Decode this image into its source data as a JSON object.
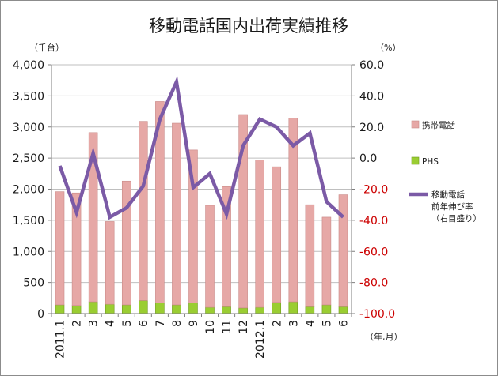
{
  "chart_data": {
    "type": "bar",
    "title": "移動電話国内出荷実績推移",
    "left_unit": "（千台）",
    "right_unit": "（%）",
    "x_unit": "（年,月）",
    "categories": [
      "2011.1",
      "2",
      "3",
      "4",
      "5",
      "6",
      "7",
      "8",
      "9",
      "10",
      "11",
      "12",
      "2012.1",
      "2",
      "3",
      "4",
      "5",
      "6"
    ],
    "left_axis": {
      "ylim": [
        0,
        4000
      ],
      "ticks": [
        0,
        500,
        1000,
        1500,
        2000,
        2500,
        3000,
        3500,
        4000
      ],
      "tick_labels": [
        "0",
        "500",
        "1,000",
        "1,500",
        "2,000",
        "2,500",
        "3,000",
        "3,500",
        "4,000"
      ]
    },
    "right_axis": {
      "ylim": [
        -100,
        60
      ],
      "ticks": [
        -100,
        -80,
        -60,
        -40,
        -20,
        0,
        20,
        40,
        60
      ],
      "tick_labels": [
        "-100.0",
        "-80.0",
        "-60.0",
        "-40.0",
        "-20.0",
        "0.0",
        "20.0",
        "40.0",
        "60.0"
      ],
      "negative_color": "#cc0000",
      "positive_color": "#1a1a1a"
    },
    "series": [
      {
        "name": "携帯電話",
        "type": "stacked-bar",
        "color": "#e6a8a6",
        "values": [
          1820,
          1810,
          2720,
          1330,
          1990,
          2880,
          3240,
          2920,
          2460,
          1640,
          1930,
          3110,
          2370,
          2180,
          2950,
          1640,
          1410,
          1800
        ]
      },
      {
        "name": "PHS",
        "type": "stacked-bar",
        "color": "#9acd32",
        "values": [
          140,
          130,
          190,
          150,
          140,
          210,
          170,
          140,
          170,
          100,
          110,
          90,
          100,
          180,
          190,
          110,
          140,
          110
        ]
      },
      {
        "name": "移動電話\n前年伸び率\n（右目盛り）",
        "type": "line",
        "axis": "right",
        "color": "#7b5aa6",
        "values": [
          -5,
          -35,
          3,
          -38,
          -32,
          -18,
          25,
          49,
          -19,
          -10,
          -36,
          8,
          25,
          20,
          8,
          16,
          -28,
          -38
        ]
      }
    ],
    "grid": true,
    "legend": "right"
  }
}
